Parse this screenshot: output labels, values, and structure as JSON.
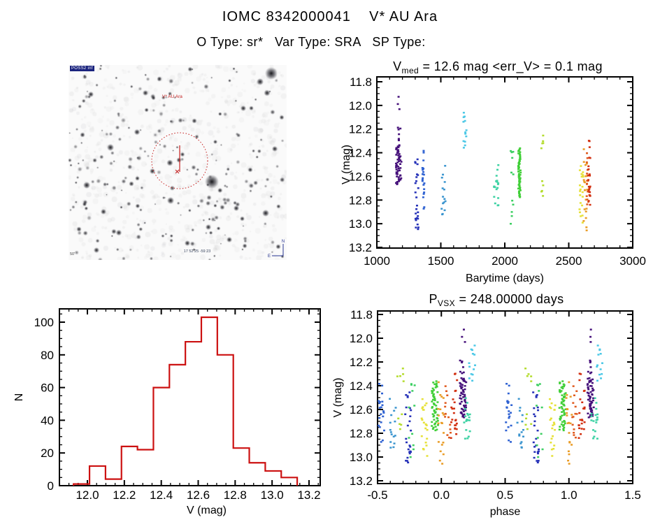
{
  "page": {
    "title": "IOMC 8342000041    V* AU Ara",
    "subtitle": "O Type: sr*   Var Type: SRA   SP Type:"
  },
  "finder": {
    "survey_label": "POSS2 inf",
    "target_label": "V* AU Ara",
    "coords_label": "17 52 25 -59 23",
    "scale_label": "50'",
    "compass": {
      "north": "N",
      "east": "E"
    },
    "marker_color": "#c62020"
  },
  "chart_data": [
    {
      "type": "scatter",
      "name": "lightcurve",
      "title": {
        "base": "V",
        "sub": "med",
        "rest": " =  12.6 mag  <err_V> =  0.1 mag"
      },
      "v_med_mag": 12.6,
      "err_v_mag": 0.1,
      "xlabel": "Barytime (days)",
      "ylabel": "V (mag)",
      "xlim": [
        1000,
        3000
      ],
      "ylim": [
        13.2,
        11.8
      ],
      "xticks": [
        1000,
        1500,
        2000,
        2500,
        3000
      ],
      "xtick_labels": [
        "1000",
        "1500",
        "2000",
        "2500",
        "3000"
      ],
      "yticks": [
        11.8,
        12.0,
        12.2,
        12.4,
        12.6,
        12.8,
        13.0,
        13.2
      ],
      "ytick_labels": [
        "11.8",
        "12.0",
        "12.2",
        "12.4",
        "12.6",
        "12.8",
        "13.0",
        "13.2"
      ],
      "x_minor_step": 100,
      "y_minor_step": 0.05,
      "grid": false,
      "groups": [
        {
          "name": "epoch-01",
          "color": "#45107a",
          "t": [
            1150,
            1192
          ],
          "phase": 0.17,
          "clusters": [
            [
              11.92,
              12.08,
              3
            ],
            [
              12.18,
              12.31,
              7
            ],
            [
              12.33,
              12.67,
              52
            ]
          ]
        },
        {
          "name": "epoch-02",
          "color": "#2531b8",
          "t": [
            1297,
            1326
          ],
          "phase": -0.26,
          "clusters": [
            [
              12.45,
              12.58,
              4
            ],
            [
              12.58,
              12.97,
              17
            ],
            [
              12.97,
              13.09,
              4
            ]
          ]
        },
        {
          "name": "epoch-03",
          "color": "#2f62d2",
          "t": [
            1356,
            1372
          ],
          "phase": -0.47,
          "clusters": [
            [
              12.37,
              12.47,
              3
            ],
            [
              12.52,
              12.81,
              16
            ],
            [
              12.83,
              12.88,
              2
            ]
          ]
        },
        {
          "name": "epoch-04",
          "color": "#3b95cf",
          "t": [
            1506,
            1540
          ],
          "phase": -0.38,
          "clusters": [
            [
              12.5,
              12.94,
              15
            ]
          ]
        },
        {
          "name": "epoch-05",
          "color": "#4cc8e6",
          "t": [
            1676,
            1700
          ],
          "phase": 0.24,
          "clusters": [
            [
              12.02,
              12.43,
              13
            ]
          ]
        },
        {
          "name": "epoch-06",
          "color": "#3ed2a4",
          "t": [
            1916,
            1950
          ],
          "phase": 0.2,
          "clusters": [
            [
              12.49,
              12.73,
              13
            ],
            [
              12.75,
              12.85,
              5
            ]
          ]
        },
        {
          "name": "epoch-07",
          "color": "#3ccf62",
          "t": [
            2046,
            2068
          ],
          "phase": -0.23,
          "clusters": [
            [
              12.34,
              12.62,
              6
            ],
            [
              12.8,
              13.03,
              5
            ]
          ]
        },
        {
          "name": "epoch-08",
          "color": "#41cf38",
          "t": [
            2106,
            2124
          ],
          "phase": -0.05,
          "clusters": [
            [
              12.36,
              12.78,
              55
            ]
          ]
        },
        {
          "name": "epoch-09",
          "color": "#b4dc2e",
          "t": [
            2286,
            2300
          ],
          "phase": -0.32,
          "clusters": [
            [
              12.25,
              12.38,
              5
            ],
            [
              12.63,
              12.77,
              5
            ]
          ]
        },
        {
          "name": "epoch-10",
          "color": "#e6e138",
          "t": [
            2584,
            2614
          ],
          "phase": -0.13,
          "clusters": [
            [
              12.5,
              12.79,
              14
            ],
            [
              12.82,
              13.0,
              7
            ]
          ]
        },
        {
          "name": "epoch-11",
          "color": "#e99c26",
          "t": [
            2616,
            2646
          ],
          "phase": 0.0,
          "clusters": [
            [
              12.35,
              12.52,
              4
            ],
            [
              12.55,
              12.9,
              12
            ],
            [
              12.95,
              13.12,
              4
            ]
          ]
        },
        {
          "name": "epoch-12",
          "color": "#e05a1e",
          "t": [
            2640,
            2654
          ],
          "phase": 0.05,
          "clusters": [
            [
              12.4,
              12.58,
              5
            ],
            [
              12.6,
              12.86,
              9
            ]
          ]
        },
        {
          "name": "epoch-13",
          "color": "#d22f10",
          "t": [
            2652,
            2668
          ],
          "phase": 0.1,
          "clusters": [
            [
              12.27,
              12.38,
              3
            ],
            [
              12.42,
              12.56,
              4
            ],
            [
              12.58,
              12.78,
              14
            ],
            [
              12.8,
              12.86,
              2
            ]
          ]
        }
      ]
    },
    {
      "type": "bar",
      "name": "v-histogram",
      "color": "#cc1111",
      "xlabel": "V (mag)",
      "ylabel": "N",
      "bin_start": 11.925,
      "bin_width": 0.0865,
      "values": [
        1,
        12,
        4,
        24,
        22,
        60,
        74,
        88,
        103,
        80,
        23,
        14,
        9,
        5
      ],
      "xlim": [
        11.848,
        13.262
      ],
      "ylim": [
        0,
        108
      ],
      "xticks": [
        12.0,
        12.2,
        12.4,
        12.6,
        12.8,
        13.0,
        13.2
      ],
      "xtick_labels": [
        "12.0",
        "12.2",
        "12.4",
        "12.6",
        "12.8",
        "13.0",
        "13.2"
      ],
      "yticks": [
        0,
        20,
        40,
        60,
        80,
        100
      ],
      "ytick_labels": [
        "0",
        "20",
        "40",
        "60",
        "80",
        "100"
      ],
      "x_minor_step": 0.05,
      "y_minor_step": 5,
      "grid": false
    },
    {
      "type": "scatter",
      "name": "phase-folded",
      "title": {
        "base": "P",
        "sub": "VSX",
        "rest": " =  248.00000 days"
      },
      "period_days": "248.00000",
      "xlabel": "phase",
      "ylabel": "V (mag)",
      "xlim": [
        -0.5,
        1.5
      ],
      "ylim": [
        13.2,
        11.8
      ],
      "xticks": [
        -0.5,
        0.0,
        0.5,
        1.0,
        1.5
      ],
      "xtick_labels": [
        "-0.5",
        "0.0",
        "0.5",
        "1.0",
        "1.5"
      ],
      "yticks": [
        11.8,
        12.0,
        12.2,
        12.4,
        12.6,
        12.8,
        13.0,
        13.2
      ],
      "ytick_labels": [
        "11.8",
        "12.0",
        "12.2",
        "12.4",
        "12.6",
        "12.8",
        "13.0",
        "13.2"
      ],
      "x_minor_step": 0.1,
      "y_minor_step": 0.05,
      "grid": false,
      "duplicate_offset": 1.0,
      "uses_groups_from": "lightcurve"
    }
  ]
}
